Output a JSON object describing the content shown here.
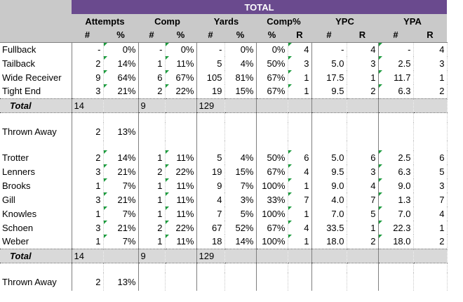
{
  "header": {
    "title": "TOTAL",
    "groups": [
      "Attempts",
      "Comp",
      "Yards",
      "Comp%",
      "YPC",
      "YPA"
    ],
    "subheaders": [
      "#",
      "%",
      "#",
      "%",
      "#",
      "%",
      "%",
      "R",
      "#",
      "R",
      "#",
      "R"
    ]
  },
  "section1": {
    "rows": [
      {
        "label": "Fullback",
        "att": "-",
        "att_pct": "0%",
        "comp": "-",
        "comp_pct": "0%",
        "yds": "-",
        "yds_pct": "0%",
        "cp": "0%",
        "cp_r": "4",
        "ypc": "-",
        "ypc_r": "4",
        "ypa": "-",
        "ypa_r": "4"
      },
      {
        "label": "Tailback",
        "att": "2",
        "att_pct": "14%",
        "comp": "1",
        "comp_pct": "11%",
        "yds": "5",
        "yds_pct": "4%",
        "cp": "50%",
        "cp_r": "3",
        "ypc": "5.0",
        "ypc_r": "3",
        "ypa": "2.5",
        "ypa_r": "3"
      },
      {
        "label": "Wide Receiver",
        "att": "9",
        "att_pct": "64%",
        "comp": "6",
        "comp_pct": "67%",
        "yds": "105",
        "yds_pct": "81%",
        "cp": "67%",
        "cp_r": "1",
        "ypc": "17.5",
        "ypc_r": "1",
        "ypa": "11.7",
        "ypa_r": "1"
      },
      {
        "label": "Tight End",
        "att": "3",
        "att_pct": "21%",
        "comp": "2",
        "comp_pct": "22%",
        "yds": "19",
        "yds_pct": "15%",
        "cp": "67%",
        "cp_r": "1",
        "ypc": "9.5",
        "ypc_r": "2",
        "ypa": "6.3",
        "ypa_r": "2"
      }
    ],
    "total": {
      "label": "Total",
      "att": "14",
      "comp": "9",
      "yds": "129"
    },
    "thrown_away": {
      "label": "Thrown Away",
      "att": "2",
      "att_pct": "13%"
    }
  },
  "section2": {
    "rows": [
      {
        "label": "Trotter",
        "att": "2",
        "att_pct": "14%",
        "comp": "1",
        "comp_pct": "11%",
        "yds": "5",
        "yds_pct": "4%",
        "cp": "50%",
        "cp_r": "6",
        "ypc": "5.0",
        "ypc_r": "6",
        "ypa": "2.5",
        "ypa_r": "6"
      },
      {
        "label": "Lenners",
        "att": "3",
        "att_pct": "21%",
        "comp": "2",
        "comp_pct": "22%",
        "yds": "19",
        "yds_pct": "15%",
        "cp": "67%",
        "cp_r": "4",
        "ypc": "9.5",
        "ypc_r": "3",
        "ypa": "6.3",
        "ypa_r": "5"
      },
      {
        "label": "Brooks",
        "att": "1",
        "att_pct": "7%",
        "comp": "1",
        "comp_pct": "11%",
        "yds": "9",
        "yds_pct": "7%",
        "cp": "100%",
        "cp_r": "1",
        "ypc": "9.0",
        "ypc_r": "4",
        "ypa": "9.0",
        "ypa_r": "3"
      },
      {
        "label": "Gill",
        "att": "3",
        "att_pct": "21%",
        "comp": "1",
        "comp_pct": "11%",
        "yds": "4",
        "yds_pct": "3%",
        "cp": "33%",
        "cp_r": "7",
        "ypc": "4.0",
        "ypc_r": "7",
        "ypa": "1.3",
        "ypa_r": "7"
      },
      {
        "label": "Knowles",
        "att": "1",
        "att_pct": "7%",
        "comp": "1",
        "comp_pct": "11%",
        "yds": "7",
        "yds_pct": "5%",
        "cp": "100%",
        "cp_r": "1",
        "ypc": "7.0",
        "ypc_r": "5",
        "ypa": "7.0",
        "ypa_r": "4"
      },
      {
        "label": "Schoen",
        "att": "3",
        "att_pct": "21%",
        "comp": "2",
        "comp_pct": "22%",
        "yds": "67",
        "yds_pct": "52%",
        "cp": "67%",
        "cp_r": "4",
        "ypc": "33.5",
        "ypc_r": "1",
        "ypa": "22.3",
        "ypa_r": "1"
      },
      {
        "label": "Weber",
        "att": "1",
        "att_pct": "7%",
        "comp": "1",
        "comp_pct": "11%",
        "yds": "18",
        "yds_pct": "14%",
        "cp": "100%",
        "cp_r": "1",
        "ypc": "18.0",
        "ypc_r": "2",
        "ypa": "18.0",
        "ypa_r": "2"
      }
    ],
    "total": {
      "label": "Total",
      "att": "14",
      "comp": "9",
      "yds": "129"
    },
    "thrown_away": {
      "label": "Thrown Away",
      "att": "2",
      "att_pct": "13%"
    }
  },
  "colors": {
    "header_bg": "#6a4a8e",
    "header_gray": "#c9c9c9",
    "total_gray": "#d9d9d9",
    "indicator": "#1a9b3c"
  }
}
